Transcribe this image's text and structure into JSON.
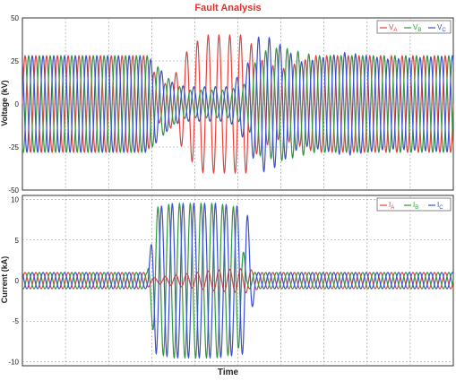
{
  "figure": {
    "title": "Fault Analysis",
    "xlabel": "Time",
    "colors": {
      "A": "#e8413c",
      "B": "#2e9a3c",
      "C": "#3b4fd8",
      "grid": "#999999",
      "title": "#e0302a"
    }
  },
  "chart_data": [
    {
      "type": "line",
      "title": "Fault Analysis",
      "xlabel": "",
      "ylabel": "Voltage (kV)",
      "ylim": [
        -50,
        50
      ],
      "yticks": [
        50,
        25,
        0,
        -25,
        -50
      ],
      "grid": true,
      "legend_position": "top-right",
      "legend": [
        {
          "main": "V",
          "sub": "A",
          "color": "#e8413c"
        },
        {
          "main": "V",
          "sub": "B",
          "color": "#2e9a3c"
        },
        {
          "main": "V",
          "sub": "C",
          "color": "#3b4fd8"
        }
      ],
      "x_range": [
        0,
        1
      ],
      "cycles": 40,
      "fault_interval": [
        0.29,
        0.52
      ],
      "series": [
        {
          "label": "V_A",
          "color": "#e8413c",
          "phase_deg": 0,
          "envelope": [
            [
              0,
              28
            ],
            [
              0.29,
              28
            ],
            [
              0.32,
              10
            ],
            [
              0.35,
              15
            ],
            [
              0.38,
              30
            ],
            [
              0.42,
              40
            ],
            [
              0.52,
              40
            ],
            [
              0.55,
              26
            ],
            [
              0.6,
              20
            ],
            [
              0.68,
              28
            ],
            [
              1,
              28
            ]
          ]
        },
        {
          "label": "V_B",
          "color": "#2e9a3c",
          "phase_deg": 120,
          "envelope": [
            [
              0,
              28
            ],
            [
              0.29,
              28
            ],
            [
              0.32,
              20
            ],
            [
              0.35,
              12
            ],
            [
              0.38,
              8
            ],
            [
              0.48,
              8
            ],
            [
              0.52,
              12
            ],
            [
              0.55,
              30
            ],
            [
              0.6,
              33
            ],
            [
              0.68,
              28
            ],
            [
              1,
              28
            ]
          ]
        },
        {
          "label": "V_C",
          "color": "#3b4fd8",
          "phase_deg": 240,
          "envelope": [
            [
              0,
              28
            ],
            [
              0.29,
              28
            ],
            [
              0.32,
              20
            ],
            [
              0.35,
              12
            ],
            [
              0.38,
              10
            ],
            [
              0.48,
              10
            ],
            [
              0.52,
              22
            ],
            [
              0.55,
              40
            ],
            [
              0.58,
              38
            ],
            [
              0.65,
              24
            ],
            [
              0.75,
              30
            ],
            [
              0.85,
              26
            ],
            [
              1,
              28
            ]
          ]
        }
      ]
    },
    {
      "type": "line",
      "title": "",
      "xlabel": "Time",
      "ylabel": "Current (kA)",
      "ylim": [
        -10.5,
        10.5
      ],
      "yticks": [
        10,
        5,
        0,
        -5,
        -10
      ],
      "grid": true,
      "legend_position": "top-right",
      "legend": [
        {
          "main": "I",
          "sub": "A",
          "color": "#e8413c"
        },
        {
          "main": "I",
          "sub": "B",
          "color": "#2e9a3c"
        },
        {
          "main": "I",
          "sub": "C",
          "color": "#3b4fd8"
        }
      ],
      "x_range": [
        0,
        1
      ],
      "cycles": 40,
      "fault_interval": [
        0.29,
        0.52
      ],
      "series": [
        {
          "label": "I_A",
          "color": "#e8413c",
          "phase_deg": 0,
          "envelope": [
            [
              0,
              1
            ],
            [
              0.29,
              1
            ],
            [
              0.3,
              0.3
            ],
            [
              0.45,
              1.3
            ],
            [
              0.52,
              1.5
            ],
            [
              0.55,
              1
            ],
            [
              1,
              1
            ]
          ]
        },
        {
          "label": "I_B",
          "color": "#2e9a3c",
          "phase_deg": 120,
          "envelope": [
            [
              0,
              1
            ],
            [
              0.29,
              1
            ],
            [
              0.31,
              9
            ],
            [
              0.35,
              9.5
            ],
            [
              0.45,
              9.5
            ],
            [
              0.5,
              9
            ],
            [
              0.52,
              1
            ],
            [
              1,
              1
            ]
          ]
        },
        {
          "label": "I_C",
          "color": "#3b4fd8",
          "phase_deg": 240,
          "envelope": [
            [
              0,
              1
            ],
            [
              0.29,
              1
            ],
            [
              0.31,
              9
            ],
            [
              0.35,
              9.5
            ],
            [
              0.45,
              9.5
            ],
            [
              0.52,
              9
            ],
            [
              0.54,
              1
            ],
            [
              1,
              1
            ]
          ]
        }
      ]
    }
  ]
}
